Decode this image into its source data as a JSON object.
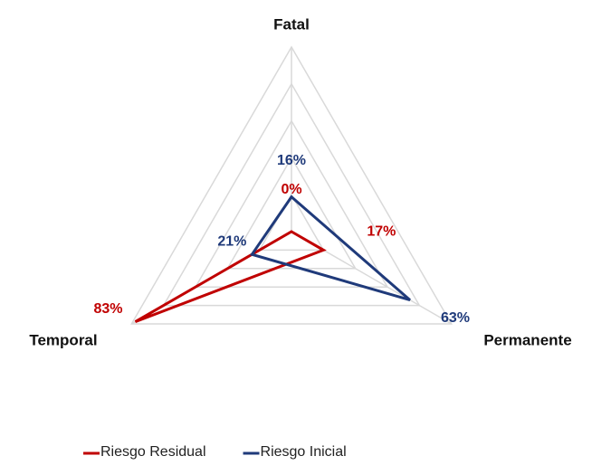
{
  "chart_data": {
    "type": "radar",
    "categories": [
      "Fatal",
      "Permanente",
      "Temporal"
    ],
    "series": [
      {
        "name": "Riesgo Residual",
        "color": "#c00000",
        "values": [
          0,
          17,
          83
        ],
        "value_labels": [
          "0%",
          "17%",
          "83%"
        ]
      },
      {
        "name": "Riesgo Inicial",
        "color": "#1f3a7a",
        "values": [
          16,
          63,
          21
        ],
        "value_labels": [
          "16%",
          "63%",
          "21%"
        ]
      }
    ],
    "rlim": [
      0,
      85
    ],
    "rticks": [
      17,
      34,
      51,
      68,
      85
    ],
    "grid": true,
    "legend": "bottom"
  }
}
